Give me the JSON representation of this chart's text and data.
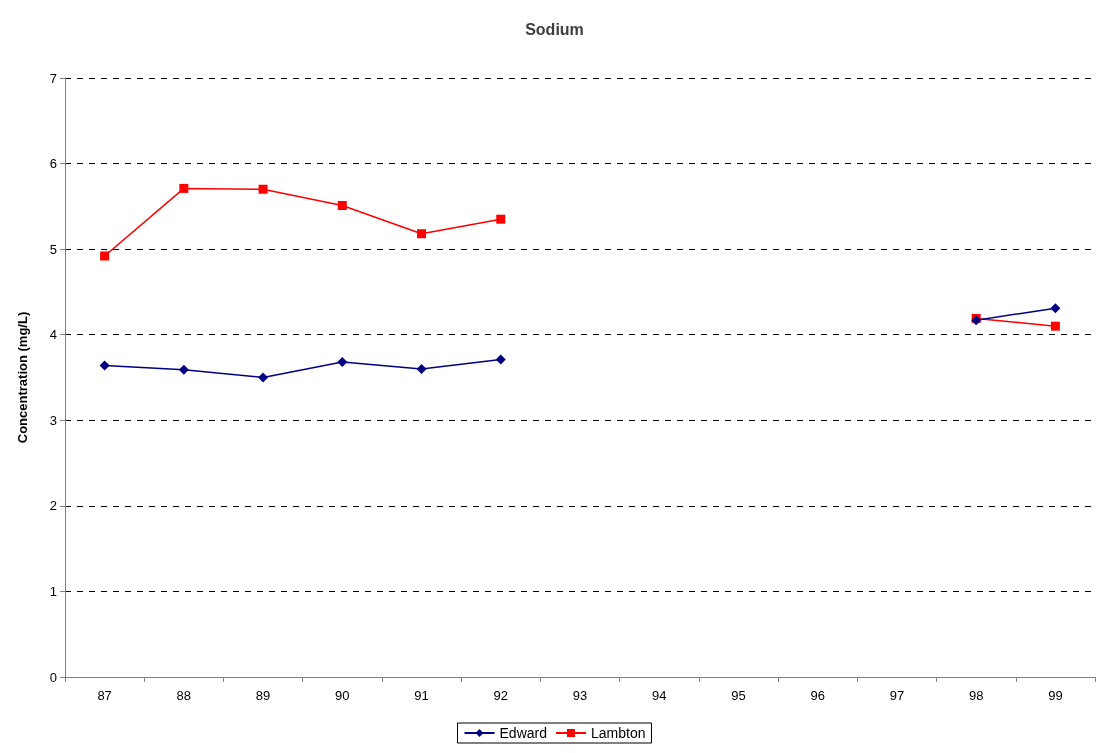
{
  "chart_data": {
    "type": "line",
    "title": "Sodium",
    "ylabel": "Concentration (mg/L)",
    "categories": [
      "87",
      "88",
      "89",
      "90",
      "91",
      "92",
      "93",
      "94",
      "95",
      "96",
      "97",
      "98",
      "99"
    ],
    "series": [
      {
        "name": "Edward",
        "color": "#000080",
        "marker": "diamond",
        "values": [
          3.64,
          3.59,
          3.5,
          3.68,
          3.6,
          3.71,
          null,
          null,
          null,
          null,
          null,
          4.17,
          4.31
        ]
      },
      {
        "name": "Lambton",
        "color": "#ff0000",
        "marker": "square",
        "values": [
          4.92,
          5.71,
          5.7,
          5.51,
          5.18,
          5.35,
          null,
          null,
          null,
          null,
          null,
          4.19,
          4.1
        ]
      }
    ],
    "ylim": [
      0,
      7
    ],
    "yticks": [
      0,
      1,
      2,
      3,
      4,
      5,
      6,
      7
    ],
    "grid": "y",
    "legend": "bottom",
    "line_style": "solid"
  }
}
